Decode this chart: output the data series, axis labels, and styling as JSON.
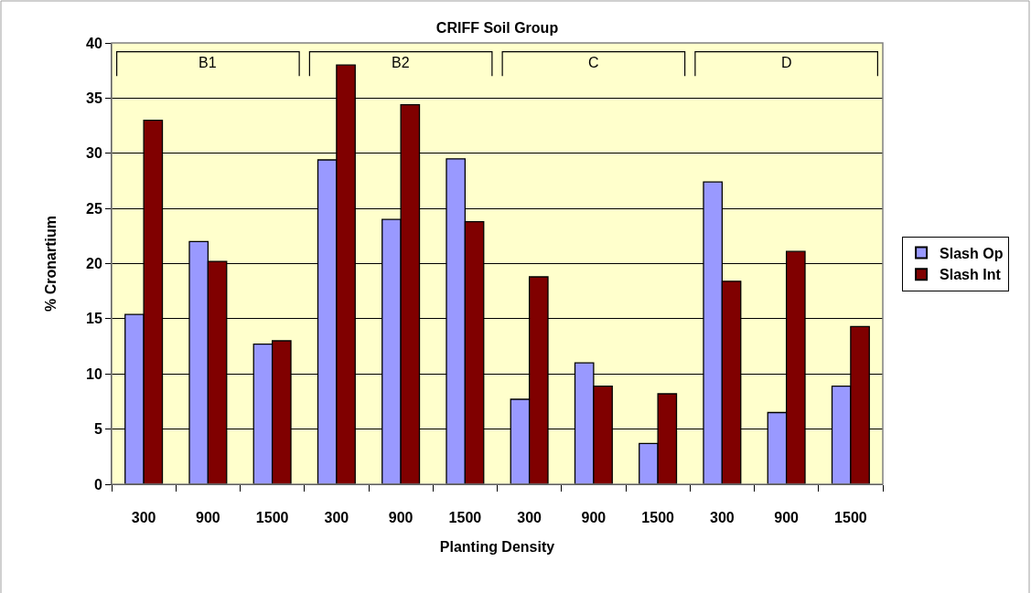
{
  "chart_data": {
    "type": "bar",
    "title": "CRIFF Soil Group",
    "xlabel": "Planting Density",
    "ylabel": "% Cronartium",
    "categories": [
      "300",
      "900",
      "1500",
      "300",
      "900",
      "1500",
      "300",
      "900",
      "1500",
      "300",
      "900",
      "1500"
    ],
    "annotations": [
      "B1",
      "B2",
      "C",
      "D"
    ],
    "series": [
      {
        "name": "Slash Op",
        "color": "#9999ff",
        "values": [
          15.4,
          22.0,
          12.7,
          29.4,
          24.0,
          29.5,
          7.7,
          11.0,
          3.7,
          27.4,
          6.5,
          8.9
        ]
      },
      {
        "name": "Slash Int",
        "color": "#800000",
        "values": [
          33.0,
          20.2,
          13.0,
          38.0,
          34.4,
          23.8,
          18.8,
          8.9,
          8.2,
          18.4,
          21.1,
          14.3
        ]
      }
    ],
    "ylim": [
      0,
      40
    ],
    "yticks": [
      0,
      5,
      10,
      15,
      20,
      25,
      30,
      35,
      40
    ],
    "grid": "y",
    "legend": "right"
  }
}
